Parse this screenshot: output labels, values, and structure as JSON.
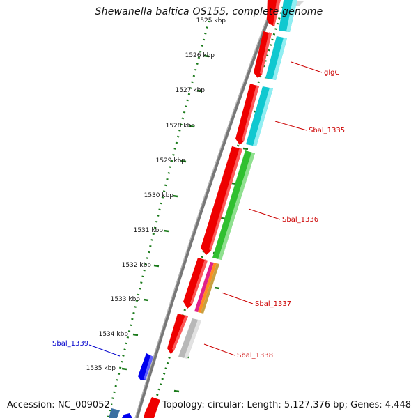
{
  "title": "Shewanella baltica OS155, complete genome",
  "footer": {
    "accession": "Accession: NC_009052",
    "topology": "Topology: circular; Length: 5,127,376 bp; Genes: 4,448"
  },
  "ticks": [
    "1525 kbp",
    "1526 kbp",
    "1527 kbp",
    "1528 kbp",
    "1529 kbp",
    "1530 kbp",
    "1531 kbp",
    "1532 kbp",
    "1533 kbp",
    "1534 kbp",
    "1535 kbp"
  ],
  "gene_labels": [
    {
      "text": "glgC",
      "color": "#cc0000"
    },
    {
      "text": "Sbal_1335",
      "color": "#cc0000"
    },
    {
      "text": "Sbal_1336",
      "color": "#cc0000"
    },
    {
      "text": "Sbal_1337",
      "color": "#cc0000"
    },
    {
      "text": "Sbal_1338",
      "color": "#cc0000"
    },
    {
      "text": "Sbal_1339",
      "color": "#0000cc"
    }
  ],
  "colors": {
    "backbone": "#7a7a7a",
    "forward_cds": "#ff0000",
    "reverse_cds": "#0000ee",
    "ticks": "#1a7a1a",
    "cyan_feature": "#10c8d0",
    "green_feature": "#30c030",
    "gray_feature": "#b8b8b8"
  }
}
